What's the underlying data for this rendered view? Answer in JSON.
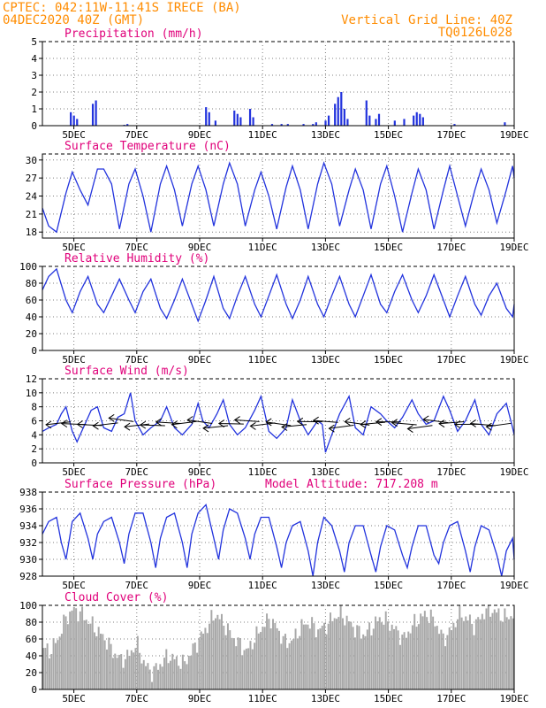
{
  "header": {
    "line1": "CPTEC:  042:11W-11:41S  IRECE (BA)",
    "line2": "04DEC2020 40Z (GMT)",
    "grid_note": "Vertical Grid Line: 40Z",
    "code": "TQ0126L028"
  },
  "colors": {
    "header": "#ff8c00",
    "title": "#e0007a",
    "line": "#2233dd",
    "bar": "#2233dd",
    "cloud": "#a8a8a8",
    "arrow": "#000000"
  },
  "x_ticks": [
    "5DEC",
    "7DEC",
    "9DEC",
    "11DEC",
    "13DEC",
    "15DEC",
    "17DEC",
    "19DEC"
  ],
  "chart_data": [
    {
      "type": "bar",
      "title": "Precipitation (mm/h)",
      "ylim": [
        0,
        5
      ],
      "yticks": [
        0,
        1,
        2,
        3,
        4,
        5
      ],
      "xlim": [
        4.0,
        19.0
      ],
      "x": [
        4.9,
        5.0,
        5.1,
        5.6,
        5.7,
        6.6,
        6.7,
        9.2,
        9.3,
        9.5,
        10.1,
        10.2,
        10.3,
        10.6,
        10.7,
        11.3,
        11.6,
        11.8,
        12.3,
        12.6,
        12.7,
        13.0,
        13.1,
        13.3,
        13.4,
        13.5,
        13.6,
        13.7,
        14.3,
        14.4,
        14.6,
        14.7,
        15.2,
        15.5,
        15.8,
        15.9,
        16.0,
        16.1,
        17.1,
        18.7
      ],
      "values": [
        0.8,
        0.6,
        0.4,
        1.3,
        1.5,
        0.05,
        0.1,
        1.1,
        0.8,
        0.3,
        0.9,
        0.7,
        0.5,
        1.0,
        0.5,
        0.1,
        0.1,
        0.1,
        0.1,
        0.1,
        0.2,
        0.3,
        0.6,
        1.3,
        1.7,
        2.0,
        1.0,
        0.4,
        1.5,
        0.6,
        0.4,
        0.7,
        0.3,
        0.4,
        0.6,
        0.8,
        0.7,
        0.5,
        0.1,
        0.2
      ]
    },
    {
      "type": "line",
      "title": "Surface Temperature (nC)",
      "ylim": [
        17,
        31
      ],
      "yticks": [
        18,
        21,
        24,
        27,
        30
      ],
      "xlim": [
        4.0,
        19.0
      ],
      "x": [
        4.0,
        4.2,
        4.45,
        4.75,
        4.95,
        5.2,
        5.45,
        5.75,
        5.95,
        6.2,
        6.45,
        6.75,
        6.95,
        7.2,
        7.45,
        7.75,
        7.95,
        8.2,
        8.45,
        8.75,
        8.95,
        9.2,
        9.45,
        9.75,
        9.95,
        10.2,
        10.45,
        10.75,
        10.95,
        11.2,
        11.45,
        11.75,
        11.95,
        12.2,
        12.45,
        12.75,
        12.95,
        13.2,
        13.45,
        13.75,
        13.95,
        14.2,
        14.45,
        14.75,
        14.95,
        15.2,
        15.45,
        15.75,
        15.95,
        16.2,
        16.45,
        16.75,
        16.95,
        17.2,
        17.45,
        17.75,
        17.95,
        18.2,
        18.45,
        18.75,
        18.95,
        19.0
      ],
      "values": [
        22.0,
        19.0,
        18.0,
        24.5,
        28.0,
        25.0,
        22.5,
        28.5,
        28.5,
        26.0,
        18.5,
        26.0,
        28.5,
        24.0,
        18.0,
        26.0,
        29.0,
        25.0,
        19.0,
        26.0,
        29.0,
        25.0,
        19.0,
        26.0,
        29.5,
        26.0,
        19.0,
        25.0,
        28.0,
        24.0,
        18.5,
        25.5,
        29.0,
        25.0,
        18.5,
        26.0,
        29.5,
        26.0,
        19.0,
        25.0,
        28.5,
        25.0,
        18.5,
        26.0,
        29.0,
        24.0,
        18.0,
        24.5,
        28.5,
        25.0,
        18.5,
        25.0,
        29.0,
        24.0,
        19.0,
        25.0,
        28.5,
        25.0,
        19.5,
        25.0,
        29.0,
        27.0
      ]
    },
    {
      "type": "line",
      "title": "Relative Humidity (%)",
      "ylim": [
        0,
        100
      ],
      "yticks": [
        0,
        20,
        40,
        60,
        80,
        100
      ],
      "xlim": [
        4.0,
        19.0
      ],
      "x": [
        4.0,
        4.2,
        4.45,
        4.75,
        4.95,
        5.2,
        5.45,
        5.75,
        5.95,
        6.2,
        6.45,
        6.75,
        6.95,
        7.2,
        7.45,
        7.75,
        7.95,
        8.2,
        8.45,
        8.75,
        8.95,
        9.2,
        9.45,
        9.75,
        9.95,
        10.2,
        10.45,
        10.75,
        10.95,
        11.2,
        11.45,
        11.75,
        11.95,
        12.2,
        12.45,
        12.75,
        12.95,
        13.2,
        13.45,
        13.75,
        13.95,
        14.2,
        14.45,
        14.75,
        14.95,
        15.2,
        15.45,
        15.75,
        15.95,
        16.2,
        16.45,
        16.75,
        16.95,
        17.2,
        17.45,
        17.75,
        17.95,
        18.2,
        18.45,
        18.75,
        18.95,
        19.0
      ],
      "values": [
        72,
        88,
        97,
        60,
        45,
        70,
        88,
        55,
        45,
        65,
        85,
        60,
        45,
        70,
        85,
        50,
        38,
        60,
        85,
        55,
        35,
        60,
        88,
        50,
        38,
        65,
        88,
        55,
        40,
        65,
        90,
        55,
        38,
        60,
        88,
        55,
        40,
        65,
        88,
        55,
        40,
        65,
        90,
        55,
        45,
        70,
        90,
        60,
        45,
        65,
        90,
        60,
        40,
        65,
        88,
        55,
        42,
        65,
        80,
        50,
        40,
        55
      ]
    },
    {
      "type": "line",
      "title": "Surface Wind (m/s)",
      "ylim": [
        0,
        12
      ],
      "yticks": [
        0,
        2,
        4,
        6,
        8,
        10,
        12
      ],
      "xlim": [
        4.0,
        19.0
      ],
      "x": [
        4.0,
        4.2,
        4.45,
        4.6,
        4.75,
        4.95,
        5.1,
        5.3,
        5.55,
        5.75,
        5.95,
        6.2,
        6.4,
        6.6,
        6.8,
        6.95,
        7.2,
        7.45,
        7.75,
        7.95,
        8.2,
        8.45,
        8.75,
        8.95,
        9.1,
        9.3,
        9.55,
        9.75,
        9.95,
        10.2,
        10.45,
        10.75,
        10.95,
        11.2,
        11.45,
        11.75,
        11.95,
        12.2,
        12.45,
        12.75,
        12.9,
        13.0,
        13.2,
        13.45,
        13.75,
        13.95,
        14.2,
        14.45,
        14.75,
        14.95,
        15.2,
        15.45,
        15.75,
        15.95,
        16.2,
        16.45,
        16.75,
        16.95,
        17.2,
        17.45,
        17.75,
        17.95,
        18.2,
        18.45,
        18.75,
        18.95,
        19.0
      ],
      "values": [
        4.5,
        5.0,
        5.5,
        7.0,
        8.0,
        4.5,
        3.0,
        5.0,
        7.5,
        8.0,
        5.0,
        4.5,
        6.5,
        7.0,
        10.0,
        6.0,
        4.0,
        5.0,
        6.0,
        8.0,
        5.0,
        4.0,
        5.5,
        8.5,
        6.0,
        5.0,
        7.0,
        9.0,
        5.5,
        4.0,
        5.0,
        7.5,
        9.5,
        4.5,
        3.5,
        5.0,
        9.0,
        6.0,
        4.0,
        6.0,
        5.5,
        1.5,
        4.0,
        7.0,
        9.5,
        5.0,
        4.0,
        8.0,
        7.0,
        6.0,
        5.0,
        6.5,
        9.0,
        7.0,
        5.5,
        6.0,
        9.5,
        7.5,
        4.5,
        6.0,
        9.0,
        5.5,
        4.0,
        7.0,
        8.5,
        5.0,
        4.0
      ]
    },
    {
      "type": "line",
      "title": "Surface Pressure (hPa)",
      "annotation": "Model Altitude: 717.208 m",
      "ylim": [
        928,
        938
      ],
      "yticks": [
        928,
        930,
        932,
        934,
        936,
        938
      ],
      "xlim": [
        4.0,
        19.0
      ],
      "x": [
        4.0,
        4.2,
        4.45,
        4.6,
        4.75,
        4.95,
        5.2,
        5.45,
        5.6,
        5.75,
        5.95,
        6.2,
        6.45,
        6.6,
        6.75,
        6.95,
        7.2,
        7.45,
        7.6,
        7.75,
        7.95,
        8.2,
        8.45,
        8.6,
        8.75,
        8.95,
        9.2,
        9.45,
        9.6,
        9.75,
        9.95,
        10.2,
        10.45,
        10.6,
        10.75,
        10.95,
        11.2,
        11.45,
        11.6,
        11.75,
        11.95,
        12.2,
        12.45,
        12.6,
        12.75,
        12.95,
        13.2,
        13.45,
        13.6,
        13.75,
        13.95,
        14.2,
        14.45,
        14.6,
        14.75,
        14.95,
        15.2,
        15.45,
        15.6,
        15.75,
        15.95,
        16.2,
        16.45,
        16.6,
        16.75,
        16.95,
        17.2,
        17.45,
        17.6,
        17.75,
        17.95,
        18.2,
        18.45,
        18.6,
        18.75,
        18.95,
        19.0
      ],
      "values": [
        933.0,
        934.5,
        935.0,
        932.0,
        930.0,
        934.5,
        935.5,
        932.5,
        930.0,
        933.0,
        934.5,
        935.0,
        932.0,
        929.5,
        933.0,
        935.5,
        935.5,
        932.0,
        929.0,
        932.5,
        935.0,
        935.5,
        932.0,
        929.0,
        933.0,
        935.5,
        936.5,
        932.5,
        930.0,
        933.5,
        936.0,
        935.5,
        932.5,
        930.0,
        933.0,
        935.0,
        935.0,
        931.5,
        929.0,
        932.0,
        934.0,
        934.5,
        931.0,
        928.0,
        932.0,
        935.0,
        934.0,
        931.0,
        928.5,
        932.0,
        934.0,
        934.0,
        930.5,
        928.5,
        931.5,
        934.0,
        933.5,
        930.5,
        929.0,
        931.5,
        934.0,
        934.0,
        930.5,
        929.5,
        932.0,
        934.0,
        934.5,
        931.0,
        928.5,
        931.5,
        934.0,
        933.5,
        930.5,
        928.0,
        931.0,
        932.5,
        930.0
      ]
    },
    {
      "type": "area",
      "title": "Cloud Cover (%)",
      "ylim": [
        0,
        100
      ],
      "yticks": [
        0,
        20,
        40,
        60,
        80,
        100
      ],
      "xlim": [
        4.0,
        19.0
      ],
      "x": [
        4.0,
        4.25,
        4.5,
        4.75,
        5.0,
        5.25,
        5.5,
        5.75,
        6.0,
        6.25,
        6.5,
        6.75,
        7.0,
        7.25,
        7.5,
        7.75,
        8.0,
        8.25,
        8.5,
        8.75,
        9.0,
        9.25,
        9.5,
        9.75,
        10.0,
        10.25,
        10.5,
        10.75,
        11.0,
        11.25,
        11.5,
        11.75,
        12.0,
        12.25,
        12.5,
        12.75,
        13.0,
        13.25,
        13.5,
        13.75,
        14.0,
        14.25,
        14.5,
        14.75,
        15.0,
        15.25,
        15.5,
        15.75,
        16.0,
        16.25,
        16.5,
        16.75,
        17.0,
        17.25,
        17.5,
        17.75,
        18.0,
        18.25,
        18.5,
        18.75,
        19.0
      ],
      "values": [
        50,
        45,
        60,
        85,
        95,
        90,
        80,
        70,
        60,
        45,
        35,
        40,
        55,
        30,
        20,
        30,
        40,
        35,
        30,
        45,
        60,
        75,
        90,
        80,
        65,
        55,
        45,
        60,
        75,
        85,
        70,
        55,
        60,
        75,
        80,
        70,
        75,
        85,
        90,
        80,
        70,
        65,
        75,
        85,
        80,
        70,
        60,
        75,
        85,
        90,
        80,
        60,
        70,
        90,
        85,
        75,
        90,
        95,
        90,
        85,
        90
      ]
    }
  ]
}
